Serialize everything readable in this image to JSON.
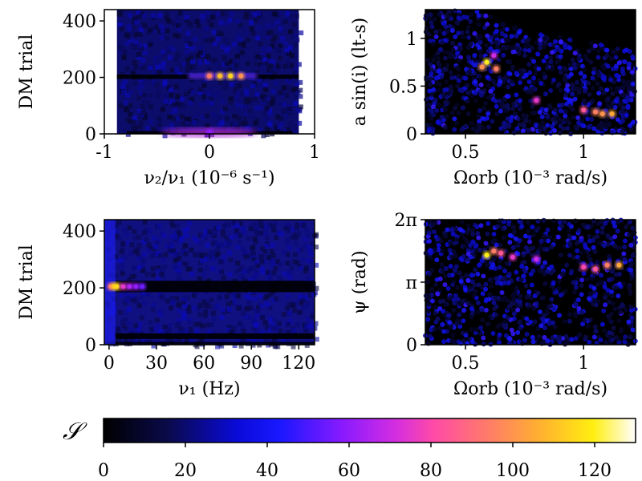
{
  "colorbar": {
    "symbol": "𝒮",
    "min": 0,
    "max": 130,
    "ticks": [
      0,
      20,
      40,
      60,
      80,
      100,
      120
    ],
    "tick_labels": [
      "0",
      "20",
      "40",
      "60",
      "80",
      "100",
      "120"
    ]
  },
  "chart_data": [
    {
      "id": "panel-a",
      "type": "heatmap",
      "title": "",
      "xlabel": "ν₂/ν₁ (10⁻⁶ s⁻¹)",
      "ylabel": "DM trial",
      "xlim": [
        -1,
        1
      ],
      "ylim": [
        0,
        440
      ],
      "xticks": [
        -1,
        0,
        1
      ],
      "xtick_labels": [
        "-1",
        "0",
        "1"
      ],
      "yticks": [
        0,
        200,
        400
      ],
      "ytick_labels": [
        "0",
        "200",
        "400"
      ],
      "hot_spots": [
        {
          "x": 0.0,
          "y": 205,
          "value": 95
        },
        {
          "x": 0.1,
          "y": 205,
          "value": 110
        },
        {
          "x": 0.2,
          "y": 205,
          "value": 115
        },
        {
          "x": 0.3,
          "y": 205,
          "value": 100
        },
        {
          "x": 0.0,
          "y": 5,
          "value": 60
        }
      ]
    },
    {
      "id": "panel-b",
      "type": "scatter",
      "xlabel": "Ωorb (10⁻³ rad/s)",
      "ylabel": "a sin(i) (lt-s)",
      "xlim": [
        0.33,
        1.22
      ],
      "ylim": [
        0,
        1.3
      ],
      "xticks": [
        0.5,
        1.0
      ],
      "xtick_labels": [
        "0.5",
        "1"
      ],
      "yticks": [
        0,
        0.5,
        1.0
      ],
      "ytick_labels": [
        "0",
        "0.5",
        "1"
      ],
      "hot_spots": [
        {
          "x": 0.59,
          "y": 0.75,
          "value": 120
        },
        {
          "x": 0.57,
          "y": 0.7,
          "value": 100
        },
        {
          "x": 0.63,
          "y": 0.68,
          "value": 95
        },
        {
          "x": 0.62,
          "y": 0.82,
          "value": 70
        },
        {
          "x": 0.8,
          "y": 0.35,
          "value": 75
        },
        {
          "x": 1.0,
          "y": 0.25,
          "value": 85
        },
        {
          "x": 1.05,
          "y": 0.23,
          "value": 95
        },
        {
          "x": 1.08,
          "y": 0.21,
          "value": 100
        },
        {
          "x": 1.12,
          "y": 0.21,
          "value": 105
        }
      ]
    },
    {
      "id": "panel-c",
      "type": "heatmap",
      "xlabel": "ν₁ (Hz)",
      "ylabel": "DM trial",
      "xlim": [
        -3,
        130
      ],
      "ylim": [
        0,
        440
      ],
      "xticks": [
        0,
        30,
        60,
        90,
        120
      ],
      "xtick_labels": [
        "0",
        "30",
        "60",
        "90",
        "120"
      ],
      "yticks": [
        0,
        200,
        400
      ],
      "ytick_labels": [
        "0",
        "200",
        "400"
      ],
      "hot_spots": [
        {
          "x": 1,
          "y": 205,
          "value": 90
        },
        {
          "x": 3,
          "y": 205,
          "value": 110
        },
        {
          "x": 5,
          "y": 205,
          "value": 115
        },
        {
          "x": 9,
          "y": 205,
          "value": 75
        },
        {
          "x": 13,
          "y": 205,
          "value": 65
        },
        {
          "x": 17,
          "y": 205,
          "value": 60
        },
        {
          "x": 21,
          "y": 205,
          "value": 55
        }
      ]
    },
    {
      "id": "panel-d",
      "type": "scatter",
      "xlabel": "Ωorb (10⁻³ rad/s)",
      "ylabel": "ψ (rad)",
      "xlim": [
        0.33,
        1.22
      ],
      "ylim": [
        0,
        6.2832
      ],
      "xticks": [
        0.5,
        1.0
      ],
      "xtick_labels": [
        "0.5",
        "1"
      ],
      "yticks": [
        0,
        3.1416,
        6.2832
      ],
      "ytick_labels": [
        "0",
        "π",
        "2π"
      ],
      "hot_spots": [
        {
          "x": 0.59,
          "y": 4.5,
          "value": 120
        },
        {
          "x": 0.62,
          "y": 4.7,
          "value": 95
        },
        {
          "x": 0.65,
          "y": 4.6,
          "value": 85
        },
        {
          "x": 0.7,
          "y": 4.4,
          "value": 75
        },
        {
          "x": 0.8,
          "y": 4.3,
          "value": 70
        },
        {
          "x": 1.0,
          "y": 3.9,
          "value": 80
        },
        {
          "x": 1.05,
          "y": 3.8,
          "value": 85
        },
        {
          "x": 1.1,
          "y": 4.0,
          "value": 95
        },
        {
          "x": 1.15,
          "y": 4.0,
          "value": 105
        }
      ]
    }
  ]
}
